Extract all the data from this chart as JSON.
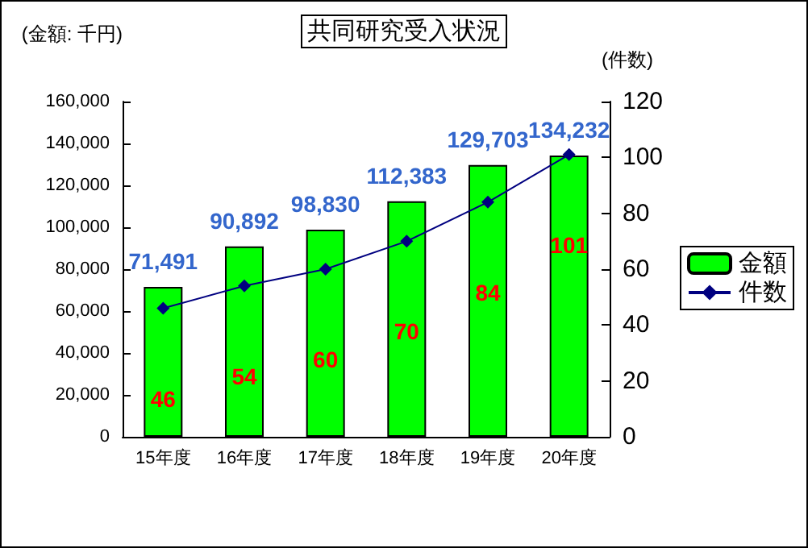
{
  "chart_data": {
    "type": "bar",
    "title": "共同研究受入状況",
    "ylabel": "(金額: 千円)",
    "y2label": "(件数)",
    "categories": [
      "15年度",
      "16年度",
      "17年度",
      "18年度",
      "19年度",
      "20年度"
    ],
    "series": [
      {
        "name": "金額",
        "color": "#00ff00",
        "values": [
          71491,
          90892,
          98830,
          112383,
          129703,
          134232
        ],
        "value_labels": [
          "71,491",
          "90,892",
          "98,830",
          "112,383",
          "129,703",
          "134,232"
        ]
      },
      {
        "name": "件数",
        "type": "line",
        "axis": "y2",
        "color": "#000080",
        "marker": "diamond",
        "values": [
          46,
          54,
          60,
          70,
          84,
          101
        ]
      }
    ],
    "ylim": [
      0,
      160000
    ],
    "yticks": [
      0,
      {
        "value": 20000,
        "label": "20,000"
      },
      {
        "value": 40000,
        "label": "40,000"
      },
      {
        "value": 60000,
        "label": "60,000"
      },
      {
        "value": 80000,
        "label": "80,000"
      },
      {
        "value": 100000,
        "label": "100,000"
      },
      {
        "value": 120000,
        "label": "120,000"
      },
      {
        "value": 140000,
        "label": "140,000"
      },
      {
        "value": 160000,
        "label": "160,000"
      }
    ],
    "y2lim": [
      0,
      120
    ],
    "y2ticks": [
      0,
      20,
      40,
      60,
      80,
      100,
      120
    ],
    "data_labels": true,
    "grid": false,
    "legend": "right"
  }
}
